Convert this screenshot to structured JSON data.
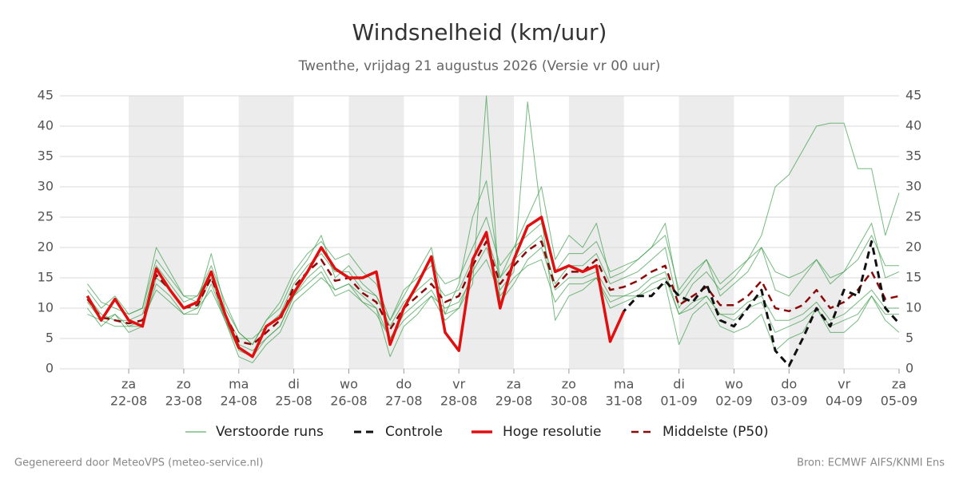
{
  "chart_data": {
    "type": "line",
    "title": "Windsnelheid (km/uur)",
    "subtitle": "Twenthe, vrijdag 21 augustus 2026 (Versie vr 00 uur)",
    "footer_left": "Gegenereerd door MeteoVPS (meteo-service.nl)",
    "footer_right": "Bron: ECMWF AIFS/KNMI Ens",
    "x": [
      -18,
      -12,
      -6,
      0,
      6,
      12,
      18,
      24,
      30,
      36,
      42,
      48,
      54,
      60,
      66,
      72,
      78,
      84,
      90,
      96,
      102,
      108,
      114,
      120,
      126,
      132,
      138,
      144,
      150,
      156,
      162,
      168,
      174,
      180,
      186,
      192,
      198,
      204,
      210,
      216,
      222,
      228,
      234,
      240,
      246,
      252,
      258,
      264,
      270,
      276,
      282,
      288,
      294,
      300,
      306,
      312,
      318,
      324,
      330,
      336
    ],
    "xlim": [
      -30,
      336
    ],
    "xticks": [
      {
        "value": 0,
        "label": "za"
      },
      {
        "value": 24,
        "label": "zo"
      },
      {
        "value": 48,
        "label": "ma"
      },
      {
        "value": 72,
        "label": "di"
      },
      {
        "value": 96,
        "label": "wo"
      },
      {
        "value": 120,
        "label": "do"
      },
      {
        "value": 144,
        "label": "vr"
      },
      {
        "value": 168,
        "label": "za"
      },
      {
        "value": 192,
        "label": "zo"
      },
      {
        "value": 216,
        "label": "ma"
      },
      {
        "value": 240,
        "label": "di"
      },
      {
        "value": 264,
        "label": "wo"
      },
      {
        "value": 288,
        "label": "do"
      },
      {
        "value": 312,
        "label": "vr"
      },
      {
        "value": 336,
        "label": "za"
      }
    ],
    "xtick_dates": [
      "22-08",
      "23-08",
      "24-08",
      "25-08",
      "26-08",
      "27-08",
      "28-08",
      "29-08",
      "30-08",
      "31-08",
      "01-09",
      "02-09",
      "03-09",
      "04-09",
      "05-09"
    ],
    "ylim": [
      0,
      45
    ],
    "yticks": [
      0,
      5,
      10,
      15,
      20,
      25,
      30,
      35,
      40,
      45
    ],
    "y2lim": [
      0,
      45
    ],
    "y2ticks": [
      0,
      5,
      10,
      15,
      20,
      25,
      30,
      35,
      40,
      45
    ],
    "grid": true,
    "ensemble": {
      "name": "Verstoorde runs",
      "color": "#3a9d48",
      "members": [
        [
          13,
          10,
          12,
          9,
          10,
          20,
          16,
          12,
          11,
          19,
          10,
          6,
          4,
          8,
          10,
          15,
          18,
          22,
          15,
          17,
          14,
          12,
          8,
          12,
          16,
          20,
          9,
          14,
          25,
          31,
          15,
          20,
          25,
          30,
          18,
          22,
          20,
          24,
          15,
          16,
          18,
          20,
          24,
          12,
          15,
          18,
          12,
          14,
          16,
          20,
          13,
          12,
          15,
          18,
          14,
          16,
          20,
          24,
          15,
          16
        ],
        [
          10,
          7,
          9,
          6,
          7,
          14,
          12,
          9,
          9,
          14,
          8,
          3,
          2,
          5,
          7,
          12,
          14,
          16,
          12,
          13,
          11,
          10,
          5,
          8,
          10,
          12,
          10,
          11,
          15,
          18,
          12,
          15,
          17,
          18,
          11,
          14,
          14,
          15,
          11,
          12,
          12,
          14,
          15,
          9,
          10,
          12,
          9,
          9,
          11,
          12,
          8,
          8,
          9,
          11,
          8,
          9,
          11,
          13,
          10,
          10
        ],
        [
          12,
          9,
          8,
          8,
          9,
          17,
          14,
          11,
          12,
          16,
          9,
          5,
          5,
          7,
          9,
          14,
          17,
          19,
          16,
          16,
          13,
          12,
          7,
          11,
          13,
          15,
          12,
          13,
          18,
          22,
          15,
          18,
          20,
          22,
          14,
          17,
          17,
          19,
          14,
          15,
          16,
          18,
          20,
          10,
          14,
          16,
          13,
          15,
          18,
          22,
          30,
          32,
          36,
          40,
          40.5,
          40.5,
          33,
          33,
          22,
          29
        ],
        [
          9,
          8,
          7,
          7,
          8,
          13,
          11,
          9,
          10,
          13,
          8,
          2,
          1,
          4,
          6,
          11,
          13,
          15,
          13,
          14,
          12,
          10,
          2,
          7,
          9,
          12,
          8,
          10,
          14,
          45,
          11,
          14,
          18,
          20,
          13,
          15,
          15,
          16,
          12,
          12,
          13,
          15,
          16,
          9,
          11,
          12,
          9,
          8,
          10,
          11,
          6,
          7,
          8,
          10,
          7,
          8,
          9,
          12,
          9,
          9
        ],
        [
          14,
          11,
          10,
          9,
          10,
          18,
          15,
          12,
          12,
          17,
          11,
          6,
          4,
          8,
          11,
          16,
          19,
          21,
          18,
          19,
          16,
          14,
          8,
          13,
          15,
          17,
          14,
          15,
          20,
          25,
          17,
          20,
          22,
          24,
          16,
          19,
          19,
          21,
          16,
          17,
          18,
          20,
          22,
          13,
          16,
          18,
          14,
          16,
          18,
          20,
          16,
          15,
          16,
          18,
          15,
          16,
          18,
          22,
          17,
          17
        ],
        [
          11,
          8,
          9,
          7,
          7,
          15,
          13,
          10,
          10,
          15,
          8,
          4,
          3,
          5,
          7,
          12,
          15,
          17,
          13,
          14,
          11,
          9,
          5,
          9,
          11,
          13,
          9,
          10,
          16,
          20,
          13,
          16,
          44,
          25,
          8,
          12,
          13,
          15,
          10,
          11,
          12,
          13,
          14,
          4,
          9,
          11,
          7,
          6,
          7,
          9,
          3,
          5,
          6,
          10,
          6,
          6,
          8,
          12,
          8,
          6
        ]
      ]
    },
    "series": [
      {
        "name": "Controle",
        "color": "#111111",
        "dash": true,
        "width": 3,
        "values": [
          12,
          8,
          11.5,
          8,
          7,
          16.5,
          13,
          10,
          11,
          16,
          9,
          3.5,
          2,
          7,
          8.5,
          12.5,
          16,
          20,
          16.5,
          15,
          15,
          16,
          4,
          10,
          14,
          18.5,
          6,
          3,
          18,
          22.5,
          10,
          18,
          23.5,
          25,
          16,
          17,
          16,
          17,
          4.5,
          9.5,
          12,
          12,
          14.5,
          12,
          11,
          14,
          8,
          7,
          10,
          13,
          3,
          0.5,
          5,
          10,
          7,
          13,
          12,
          21,
          10,
          7.5
        ]
      },
      {
        "name": "Hoge resolutie",
        "color": "#e01010",
        "dash": false,
        "width": 3.5,
        "values": [
          12,
          8,
          11.5,
          8,
          7,
          16.5,
          13,
          10,
          11,
          16,
          9,
          3.5,
          2,
          7,
          8.5,
          12.5,
          16,
          20,
          16.5,
          15,
          15,
          16,
          4,
          10,
          14,
          18.5,
          6,
          3,
          18,
          22.5,
          10,
          18,
          23.5,
          25,
          16,
          17,
          16,
          17,
          4.5,
          9.5,
          null,
          null,
          null,
          null,
          null,
          null,
          null,
          null,
          null,
          null,
          null,
          null,
          null,
          null,
          null,
          null,
          null,
          null,
          null,
          null
        ]
      },
      {
        "name": "Middelste (P50)",
        "color": "#8b0a0a",
        "dash": true,
        "width": 2.5,
        "values": [
          11.5,
          8.5,
          8,
          7.5,
          8,
          15.5,
          13,
          10,
          10.5,
          15,
          9,
          4.5,
          4,
          6,
          8,
          13.5,
          16,
          18,
          14.5,
          15,
          12.5,
          11,
          6.5,
          10,
          12,
          14,
          11,
          12,
          17,
          21,
          14,
          17,
          19.5,
          21,
          13.5,
          16,
          16,
          18,
          13,
          13.5,
          14.5,
          16,
          17,
          10.5,
          12,
          13.5,
          10.5,
          10.5,
          12,
          14.5,
          10,
          9.5,
          10.5,
          13,
          10,
          11,
          13,
          16,
          11.5,
          12
        ]
      }
    ]
  }
}
